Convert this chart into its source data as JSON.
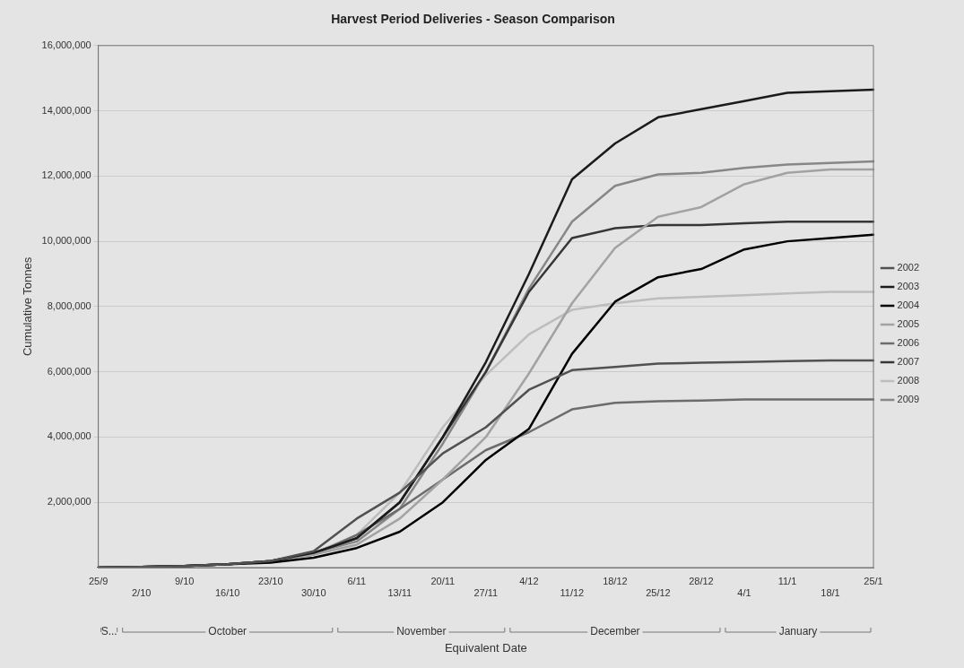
{
  "chart_data": {
    "type": "line",
    "title": "Harvest Period Deliveries - Season Comparison",
    "xlabel": "Equivalent Date",
    "ylabel": "Cumulative Tonnes",
    "categories": [
      "25/9",
      "2/10",
      "9/10",
      "16/10",
      "23/10",
      "30/10",
      "6/11",
      "13/11",
      "20/11",
      "27/11",
      "4/12",
      "11/12",
      "18/12",
      "25/12",
      "28/12",
      "4/1",
      "11/1",
      "18/1",
      "25/1"
    ],
    "series": [
      {
        "name": "2002",
        "color": "#515151",
        "values": [
          0,
          20000,
          50000,
          100000,
          200000,
          500000,
          1500000,
          2300000,
          3500000,
          4300000,
          5450000,
          6050000,
          6150000,
          6250000,
          6280000,
          6300000,
          6330000,
          6350000,
          6350000
        ]
      },
      {
        "name": "2003",
        "color": "#1b1b1b",
        "values": [
          0,
          20000,
          50000,
          100000,
          200000,
          450000,
          900000,
          2000000,
          4000000,
          6300000,
          9000000,
          11900000,
          13000000,
          13800000,
          14050000,
          14300000,
          14550000,
          14600000,
          14650000
        ]
      },
      {
        "name": "2004",
        "color": "#000000",
        "values": [
          0,
          20000,
          50000,
          100000,
          150000,
          300000,
          600000,
          1100000,
          2000000,
          3300000,
          4250000,
          6550000,
          8150000,
          8900000,
          9150000,
          9750000,
          10000000,
          10100000,
          10200000
        ]
      },
      {
        "name": "2005",
        "color": "#a2a2a2",
        "values": [
          0,
          20000,
          50000,
          100000,
          200000,
          400000,
          700000,
          1500000,
          2700000,
          4000000,
          5950000,
          8100000,
          9800000,
          10750000,
          11050000,
          11750000,
          12100000,
          12200000,
          12200000
        ]
      },
      {
        "name": "2006",
        "color": "#6c6c6c",
        "values": [
          0,
          20000,
          50000,
          100000,
          200000,
          400000,
          1000000,
          1800000,
          2700000,
          3600000,
          4150000,
          4850000,
          5050000,
          5100000,
          5120000,
          5150000,
          5150000,
          5150000,
          5150000
        ]
      },
      {
        "name": "2007",
        "color": "#363636",
        "values": [
          0,
          20000,
          50000,
          100000,
          200000,
          450000,
          900000,
          2000000,
          4000000,
          6000000,
          8450000,
          10100000,
          10400000,
          10500000,
          10500000,
          10550000,
          10600000,
          10600000,
          10600000
        ]
      },
      {
        "name": "2008",
        "color": "#bdbdbd",
        "values": [
          0,
          20000,
          50000,
          100000,
          200000,
          450000,
          1000000,
          2300000,
          4300000,
          5900000,
          7150000,
          7900000,
          8100000,
          8250000,
          8300000,
          8350000,
          8400000,
          8450000,
          8450000
        ]
      },
      {
        "name": "2009",
        "color": "#878787",
        "values": [
          0,
          20000,
          50000,
          100000,
          200000,
          450000,
          800000,
          1800000,
          3800000,
          6000000,
          8550000,
          10600000,
          11700000,
          12050000,
          12100000,
          12250000,
          12350000,
          12400000,
          12450000
        ]
      }
    ],
    "ylim": [
      0,
      16000000
    ],
    "yticks": [
      {
        "value": 2000000,
        "label": "2,000,000"
      },
      {
        "value": 4000000,
        "label": "4,000,000"
      },
      {
        "value": 6000000,
        "label": "6,000,000"
      },
      {
        "value": 8000000,
        "label": "8,000,000"
      },
      {
        "value": 10000000,
        "label": "10,000,000"
      },
      {
        "value": 12000000,
        "label": "12,000,000"
      },
      {
        "value": 14000000,
        "label": "14,000,000"
      },
      {
        "value": 16000000,
        "label": "16,000,000"
      }
    ],
    "grid": "y",
    "legend": "right",
    "marker": "none",
    "line_style": "solid",
    "annotations": [
      "S...",
      "October",
      "November",
      "December",
      "January"
    ]
  }
}
